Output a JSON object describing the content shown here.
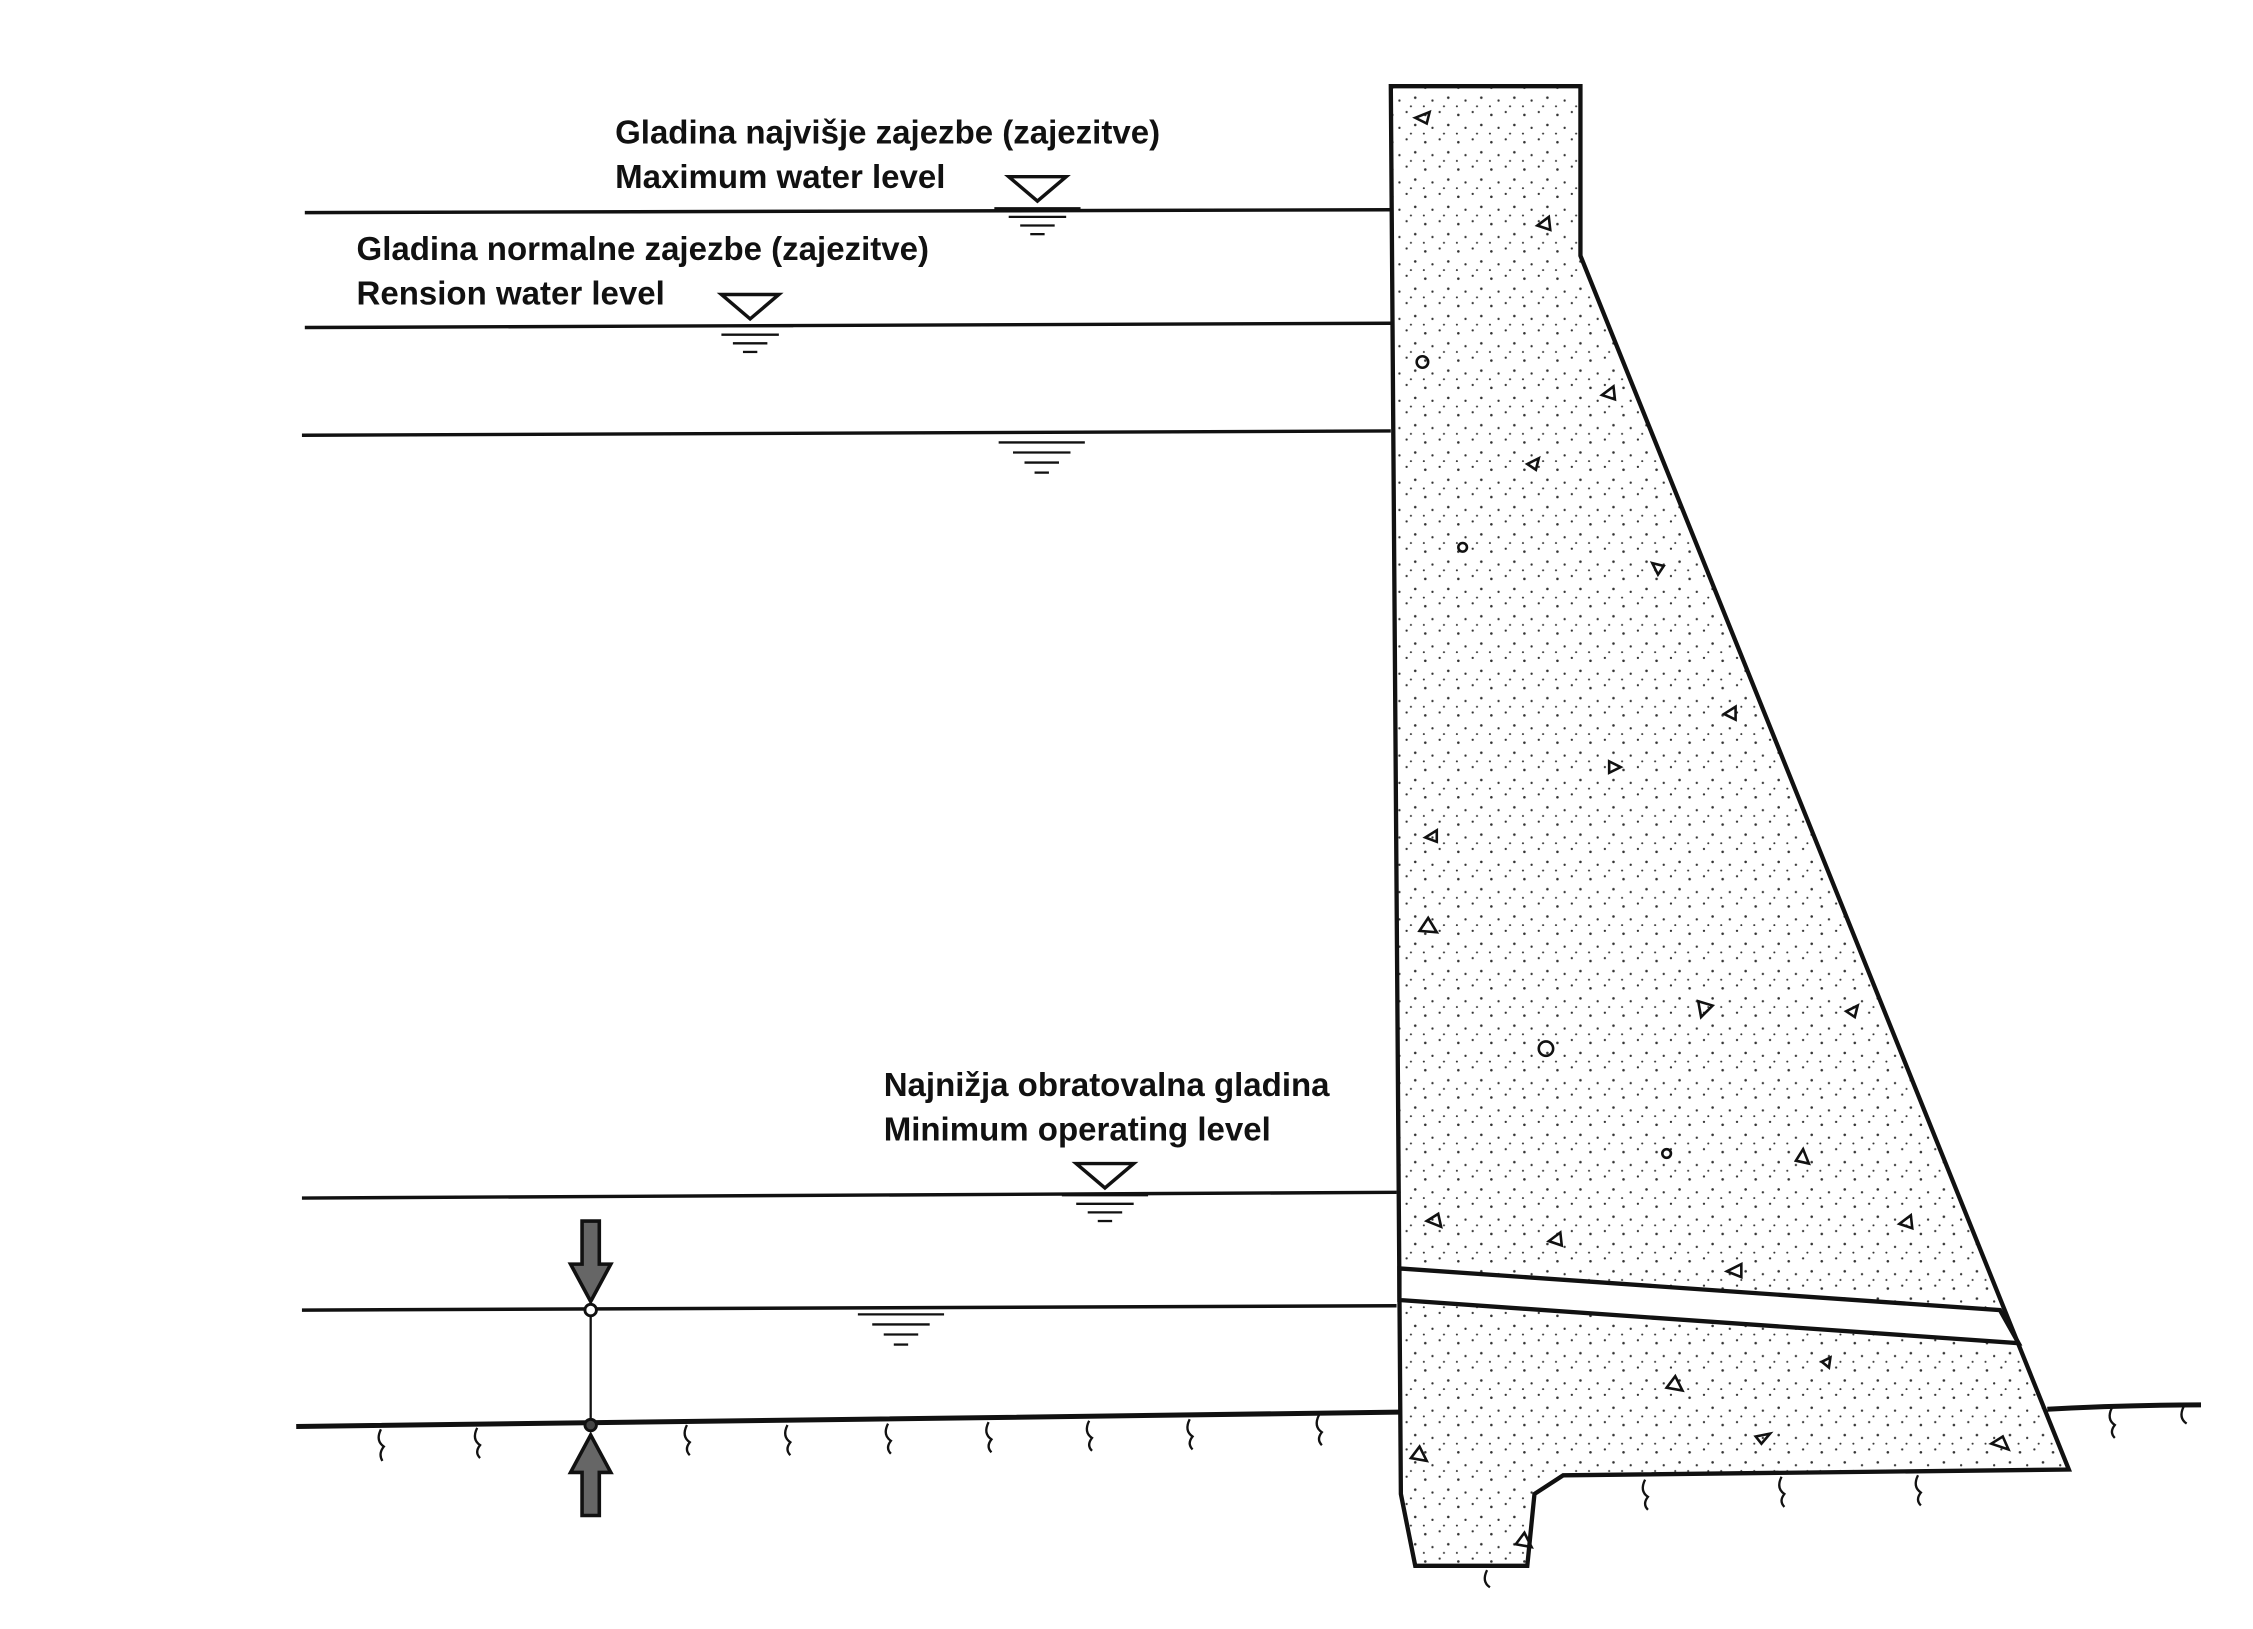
{
  "labels": [
    {
      "local": "Gladina najvišje zajezbe (zajezitve)",
      "english": "Maximum water level"
    },
    {
      "local": "Gladina normalne zajezbe (zajezitve)",
      "english": "Rension water level"
    },
    {
      "local": "Najnižja obratovalna gladina",
      "english": "Minimum operating level"
    }
  ]
}
